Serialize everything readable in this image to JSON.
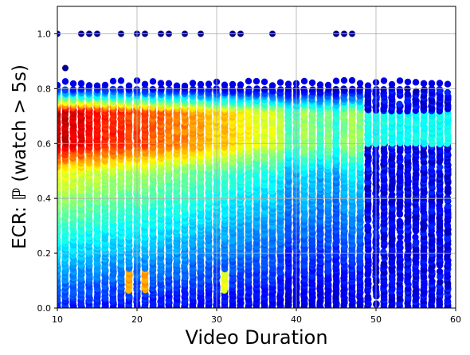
{
  "chart_data": {
    "type": "scatter",
    "title": "",
    "xlabel": "Video Duration",
    "ylabel": "ECR: ℙ (watch > 5s)",
    "xlim": [
      10,
      60
    ],
    "ylim": [
      0.0,
      1.1
    ],
    "xticks": [
      10,
      20,
      30,
      40,
      50,
      60
    ],
    "xtick_labels": [
      "10",
      "20",
      "30",
      "40",
      "50",
      "60"
    ],
    "yticks": [
      0.0,
      0.2,
      0.4,
      0.6,
      0.8,
      1.0
    ],
    "ytick_labels": [
      "0.0",
      "0.2",
      "0.4",
      "0.6",
      "0.8",
      "1.0"
    ],
    "grid": true,
    "colormap": "jet (point density)",
    "x_values": [
      10,
      11,
      12,
      13,
      14,
      15,
      16,
      17,
      18,
      19,
      20,
      21,
      22,
      23,
      24,
      25,
      26,
      27,
      28,
      29,
      30,
      31,
      32,
      33,
      34,
      35,
      36,
      37,
      38,
      39,
      40,
      41,
      42,
      43,
      44,
      45,
      46,
      47,
      48,
      49,
      50,
      51,
      52,
      53,
      54,
      55,
      56,
      57,
      58,
      59
    ],
    "column_density_profile": [
      1.0,
      1.0,
      0.95,
      0.95,
      0.9,
      0.9,
      0.85,
      0.85,
      0.85,
      0.8,
      0.8,
      0.8,
      0.75,
      0.75,
      0.7,
      0.7,
      0.7,
      0.65,
      0.65,
      0.6,
      0.55,
      0.6,
      0.55,
      0.5,
      0.5,
      0.45,
      0.45,
      0.45,
      0.4,
      0.2,
      0.22,
      0.35,
      0.3,
      0.2,
      0.3,
      0.15,
      0.3,
      0.35,
      0.3,
      0.12,
      0.1,
      0.12,
      0.1,
      0.1,
      0.1,
      0.1,
      0.1,
      0.1,
      0.1,
      0.1
    ],
    "bulk_range": [
      0.0,
      0.8
    ],
    "peak_range": [
      0.6,
      0.72
    ],
    "outliers": [
      {
        "x": 10,
        "y": 1.0
      },
      {
        "x": 11,
        "y": 0.875
      },
      {
        "x": 13,
        "y": 1.0
      },
      {
        "x": 14,
        "y": 1.0
      },
      {
        "x": 15,
        "y": 1.0
      },
      {
        "x": 18,
        "y": 1.0
      },
      {
        "x": 20,
        "y": 1.0
      },
      {
        "x": 21,
        "y": 1.0
      },
      {
        "x": 23,
        "y": 1.0
      },
      {
        "x": 24,
        "y": 1.0
      },
      {
        "x": 26,
        "y": 1.0
      },
      {
        "x": 28,
        "y": 1.0
      },
      {
        "x": 32,
        "y": 1.0
      },
      {
        "x": 33,
        "y": 1.0
      },
      {
        "x": 37,
        "y": 1.0
      },
      {
        "x": 45,
        "y": 1.0
      },
      {
        "x": 46,
        "y": 1.0
      },
      {
        "x": 47,
        "y": 1.0
      }
    ]
  }
}
